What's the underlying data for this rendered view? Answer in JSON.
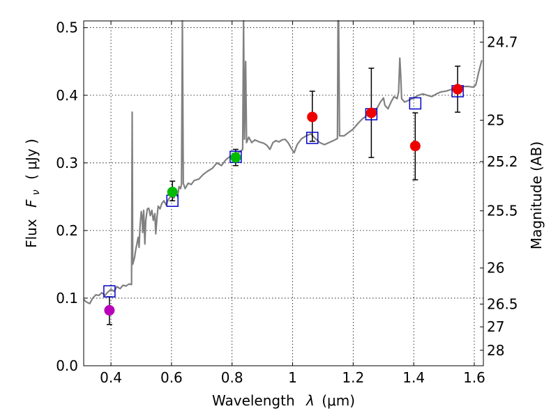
{
  "chart_data": {
    "type": "scatter",
    "xlabel_text": "Wavelength",
    "xlabel_symbol": "λ",
    "xlabel_unit": "(μm)",
    "ylabel_text": "Flux",
    "ylabel_symbol": "F",
    "ylabel_subscript": "ν",
    "ylabel_unit": "( μJy )",
    "y2label": "Magnitude (AB)",
    "xlim": [
      0.31,
      1.63
    ],
    "ylim": [
      0.0,
      0.51
    ],
    "xticks": [
      {
        "value": 0.4,
        "label": "0.4"
      },
      {
        "value": 0.6,
        "label": "0.6"
      },
      {
        "value": 0.8,
        "label": "0.8"
      },
      {
        "value": 1.0,
        "label": "1"
      },
      {
        "value": 1.2,
        "label": "1.2"
      },
      {
        "value": 1.4,
        "label": "1.4"
      },
      {
        "value": 1.6,
        "label": "1.6"
      }
    ],
    "yticks": [
      {
        "value": 0.0,
        "label": "0.0"
      },
      {
        "value": 0.1,
        "label": "0.1"
      },
      {
        "value": 0.2,
        "label": "0.2"
      },
      {
        "value": 0.3,
        "label": "0.3"
      },
      {
        "value": 0.4,
        "label": "0.4"
      },
      {
        "value": 0.5,
        "label": "0.5"
      }
    ],
    "mag_ticks": [
      {
        "mag": 24.7,
        "label": "24.7"
      },
      {
        "mag": 25.0,
        "label": "25"
      },
      {
        "mag": 25.2,
        "label": "25.2"
      },
      {
        "mag": 25.5,
        "label": "25.5"
      },
      {
        "mag": 26.0,
        "label": "26"
      },
      {
        "mag": 26.5,
        "label": "26.5"
      },
      {
        "mag": 27.0,
        "label": "27"
      },
      {
        "mag": 28.0,
        "label": "28"
      }
    ],
    "grid": true,
    "colors": {
      "model": "#808080",
      "model_phot": "#0000cc",
      "purple": "#bb00bb",
      "green": "#00bb00",
      "red": "#ee0000",
      "errorbar": "#000000"
    },
    "model_spectrum": [
      [
        0.31,
        0.098
      ],
      [
        0.32,
        0.094
      ],
      [
        0.33,
        0.092
      ],
      [
        0.34,
        0.1
      ],
      [
        0.35,
        0.105
      ],
      [
        0.36,
        0.104
      ],
      [
        0.37,
        0.108
      ],
      [
        0.38,
        0.104
      ],
      [
        0.39,
        0.109
      ],
      [
        0.4,
        0.113
      ],
      [
        0.41,
        0.11
      ],
      [
        0.42,
        0.117
      ],
      [
        0.43,
        0.114
      ],
      [
        0.44,
        0.119
      ],
      [
        0.45,
        0.118
      ],
      [
        0.46,
        0.121
      ],
      [
        0.468,
        0.12
      ],
      [
        0.47,
        0.375
      ],
      [
        0.472,
        0.15
      ],
      [
        0.478,
        0.16
      ],
      [
        0.482,
        0.172
      ],
      [
        0.49,
        0.19
      ],
      [
        0.493,
        0.175
      ],
      [
        0.496,
        0.205
      ],
      [
        0.5,
        0.228
      ],
      [
        0.503,
        0.22
      ],
      [
        0.505,
        0.197
      ],
      [
        0.508,
        0.23
      ],
      [
        0.512,
        0.18
      ],
      [
        0.515,
        0.215
      ],
      [
        0.52,
        0.232
      ],
      [
        0.525,
        0.233
      ],
      [
        0.53,
        0.222
      ],
      [
        0.535,
        0.23
      ],
      [
        0.54,
        0.215
      ],
      [
        0.545,
        0.225
      ],
      [
        0.548,
        0.195
      ],
      [
        0.552,
        0.22
      ],
      [
        0.556,
        0.236
      ],
      [
        0.562,
        0.232
      ],
      [
        0.568,
        0.24
      ],
      [
        0.575,
        0.244
      ],
      [
        0.582,
        0.238
      ],
      [
        0.59,
        0.246
      ],
      [
        0.6,
        0.252
      ],
      [
        0.608,
        0.248
      ],
      [
        0.615,
        0.256
      ],
      [
        0.62,
        0.25
      ],
      [
        0.625,
        0.265
      ],
      [
        0.63,
        0.262
      ],
      [
        0.633,
        0.268
      ],
      [
        0.636,
        0.51
      ],
      [
        0.639,
        0.27
      ],
      [
        0.645,
        0.262
      ],
      [
        0.655,
        0.27
      ],
      [
        0.665,
        0.268
      ],
      [
        0.675,
        0.274
      ],
      [
        0.69,
        0.276
      ],
      [
        0.705,
        0.283
      ],
      [
        0.72,
        0.288
      ],
      [
        0.735,
        0.292
      ],
      [
        0.75,
        0.3
      ],
      [
        0.765,
        0.296
      ],
      [
        0.78,
        0.305
      ],
      [
        0.795,
        0.31
      ],
      [
        0.805,
        0.306
      ],
      [
        0.815,
        0.314
      ],
      [
        0.825,
        0.316
      ],
      [
        0.835,
        0.32
      ],
      [
        0.838,
        0.51
      ],
      [
        0.841,
        0.335
      ],
      [
        0.845,
        0.45
      ],
      [
        0.848,
        0.33
      ],
      [
        0.855,
        0.338
      ],
      [
        0.865,
        0.33
      ],
      [
        0.875,
        0.334
      ],
      [
        0.89,
        0.331
      ],
      [
        0.905,
        0.329
      ],
      [
        0.915,
        0.326
      ],
      [
        0.925,
        0.32
      ],
      [
        0.935,
        0.33
      ],
      [
        0.945,
        0.333
      ],
      [
        0.955,
        0.331
      ],
      [
        0.965,
        0.334
      ],
      [
        0.975,
        0.335
      ],
      [
        0.985,
        0.33
      ],
      [
        0.995,
        0.322
      ],
      [
        1.005,
        0.315
      ],
      [
        1.015,
        0.327
      ],
      [
        1.03,
        0.336
      ],
      [
        1.045,
        0.34
      ],
      [
        1.06,
        0.343
      ],
      [
        1.075,
        0.336
      ],
      [
        1.09,
        0.33
      ],
      [
        1.105,
        0.327
      ],
      [
        1.12,
        0.33
      ],
      [
        1.135,
        0.333
      ],
      [
        1.148,
        0.336
      ],
      [
        1.15,
        0.51
      ],
      [
        1.152,
        0.51
      ],
      [
        1.155,
        0.34
      ],
      [
        1.17,
        0.34
      ],
      [
        1.185,
        0.345
      ],
      [
        1.2,
        0.35
      ],
      [
        1.215,
        0.358
      ],
      [
        1.23,
        0.365
      ],
      [
        1.245,
        0.37
      ],
      [
        1.26,
        0.372
      ],
      [
        1.275,
        0.378
      ],
      [
        1.29,
        0.39
      ],
      [
        1.3,
        0.396
      ],
      [
        1.305,
        0.385
      ],
      [
        1.315,
        0.38
      ],
      [
        1.325,
        0.39
      ],
      [
        1.335,
        0.398
      ],
      [
        1.345,
        0.395
      ],
      [
        1.35,
        0.405
      ],
      [
        1.354,
        0.455
      ],
      [
        1.357,
        0.43
      ],
      [
        1.36,
        0.395
      ],
      [
        1.37,
        0.39
      ],
      [
        1.385,
        0.393
      ],
      [
        1.4,
        0.396
      ],
      [
        1.415,
        0.4
      ],
      [
        1.43,
        0.402
      ],
      [
        1.445,
        0.4
      ],
      [
        1.46,
        0.398
      ],
      [
        1.475,
        0.402
      ],
      [
        1.49,
        0.405
      ],
      [
        1.505,
        0.406
      ],
      [
        1.52,
        0.408
      ],
      [
        1.535,
        0.41
      ],
      [
        1.55,
        0.41
      ],
      [
        1.565,
        0.413
      ],
      [
        1.58,
        0.413
      ],
      [
        1.595,
        0.412
      ],
      [
        1.605,
        0.415
      ],
      [
        1.615,
        0.435
      ],
      [
        1.625,
        0.452
      ]
    ],
    "model_photometry": [
      {
        "x": 0.395,
        "y": 0.11
      },
      {
        "x": 0.603,
        "y": 0.244
      },
      {
        "x": 0.812,
        "y": 0.309
      },
      {
        "x": 1.065,
        "y": 0.337
      },
      {
        "x": 1.26,
        "y": 0.372
      },
      {
        "x": 1.405,
        "y": 0.388
      },
      {
        "x": 1.545,
        "y": 0.406
      }
    ],
    "observed": [
      {
        "x": 0.395,
        "y": 0.082,
        "err_low": 0.061,
        "err_high": 0.102,
        "color": "purple"
      },
      {
        "x": 0.603,
        "y": 0.257,
        "err_low": 0.244,
        "err_high": 0.273,
        "color": "green"
      },
      {
        "x": 0.812,
        "y": 0.308,
        "err_low": 0.296,
        "err_high": 0.32,
        "color": "green"
      },
      {
        "x": 1.065,
        "y": 0.368,
        "err_low": 0.332,
        "err_high": 0.406,
        "color": "red"
      },
      {
        "x": 1.26,
        "y": 0.374,
        "err_low": 0.308,
        "err_high": 0.44,
        "color": "red"
      },
      {
        "x": 1.405,
        "y": 0.325,
        "err_low": 0.275,
        "err_high": 0.374,
        "color": "red"
      },
      {
        "x": 1.545,
        "y": 0.409,
        "err_low": 0.375,
        "err_high": 0.443,
        "color": "red"
      }
    ]
  }
}
